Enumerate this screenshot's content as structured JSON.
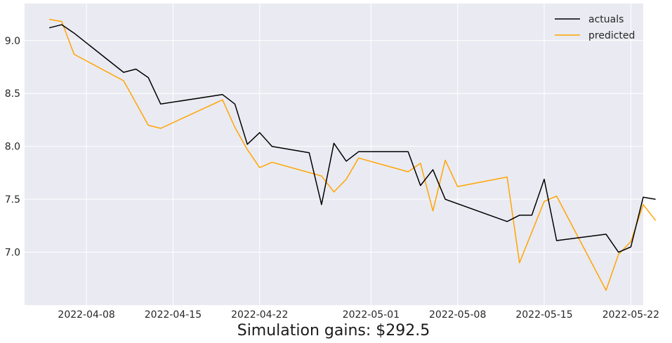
{
  "chart_data": {
    "type": "line",
    "title": "",
    "xlabel": "",
    "ylabel": "",
    "caption": "Simulation gains: $292.5",
    "xlim": [
      "2022-04-03",
      "2022-05-23"
    ],
    "ylim": [
      6.5,
      9.35
    ],
    "x_ticks": [
      "2022-04-08",
      "2022-04-15",
      "2022-04-22",
      "2022-05-01",
      "2022-05-08",
      "2022-05-15",
      "2022-05-22"
    ],
    "y_ticks": [
      7.0,
      7.5,
      8.0,
      8.5,
      9.0
    ],
    "y_tick_labels": [
      "7.0",
      "7.5",
      "8.0",
      "8.5",
      "9.0"
    ],
    "grid": true,
    "legend_position": "top-right",
    "series": [
      {
        "name": "actuals",
        "color": "#000000",
        "points": [
          [
            "2022-04-05",
            9.12
          ],
          [
            "2022-04-06",
            9.15
          ],
          [
            "2022-04-07",
            9.07
          ],
          [
            "2022-04-11",
            8.7
          ],
          [
            "2022-04-12",
            8.73
          ],
          [
            "2022-04-13",
            8.65
          ],
          [
            "2022-04-14",
            8.4
          ],
          [
            "2022-04-19",
            8.49
          ],
          [
            "2022-04-20",
            8.4
          ],
          [
            "2022-04-21",
            8.02
          ],
          [
            "2022-04-22",
            8.13
          ],
          [
            "2022-04-23",
            8.0
          ],
          [
            "2022-04-26",
            7.94
          ],
          [
            "2022-04-27",
            7.45
          ],
          [
            "2022-04-28",
            8.03
          ],
          [
            "2022-04-29",
            7.86
          ],
          [
            "2022-04-30",
            7.95
          ],
          [
            "2022-05-04",
            7.95
          ],
          [
            "2022-05-05",
            7.63
          ],
          [
            "2022-05-06",
            7.78
          ],
          [
            "2022-05-07",
            7.5
          ],
          [
            "2022-05-12",
            7.29
          ],
          [
            "2022-05-13",
            7.35
          ],
          [
            "2022-05-14",
            7.35
          ],
          [
            "2022-05-15",
            7.69
          ],
          [
            "2022-05-16",
            7.11
          ],
          [
            "2022-05-20",
            7.17
          ],
          [
            "2022-05-21",
            7.0
          ],
          [
            "2022-05-22",
            7.05
          ],
          [
            "2022-05-23",
            7.52
          ],
          [
            "2022-05-24",
            7.5
          ]
        ]
      },
      {
        "name": "predicted",
        "color": "#ffa500",
        "points": [
          [
            "2022-04-05",
            9.2
          ],
          [
            "2022-04-06",
            9.18
          ],
          [
            "2022-04-07",
            8.87
          ],
          [
            "2022-04-11",
            8.62
          ],
          [
            "2022-04-13",
            8.2
          ],
          [
            "2022-04-14",
            8.17
          ],
          [
            "2022-04-19",
            8.44
          ],
          [
            "2022-04-20",
            8.18
          ],
          [
            "2022-04-21",
            7.97
          ],
          [
            "2022-04-22",
            7.8
          ],
          [
            "2022-04-23",
            7.85
          ],
          [
            "2022-04-27",
            7.72
          ],
          [
            "2022-04-28",
            7.57
          ],
          [
            "2022-04-29",
            7.69
          ],
          [
            "2022-04-30",
            7.89
          ],
          [
            "2022-05-04",
            7.76
          ],
          [
            "2022-05-05",
            7.84
          ],
          [
            "2022-05-06",
            7.39
          ],
          [
            "2022-05-07",
            7.87
          ],
          [
            "2022-05-08",
            7.62
          ],
          [
            "2022-05-12",
            7.71
          ],
          [
            "2022-05-13",
            6.9
          ],
          [
            "2022-05-15",
            7.48
          ],
          [
            "2022-05-16",
            7.53
          ],
          [
            "2022-05-20",
            6.64
          ],
          [
            "2022-05-21",
            6.98
          ],
          [
            "2022-05-22",
            7.1
          ],
          [
            "2022-05-23",
            7.45
          ],
          [
            "2022-05-24",
            7.3
          ]
        ]
      }
    ]
  }
}
